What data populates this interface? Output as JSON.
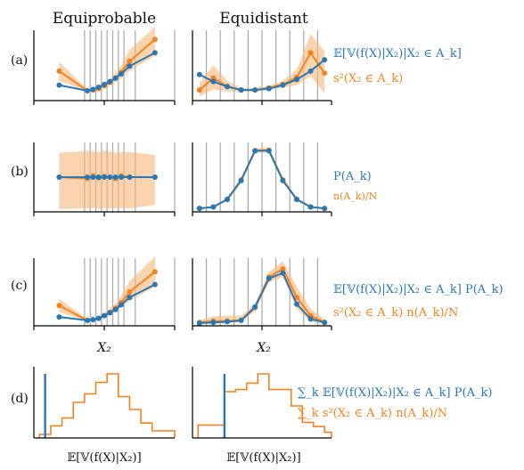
{
  "colors": {
    "blue": "#2878b5",
    "orange": "#f5821f",
    "band": "#f5b87a",
    "grid": "#a8a8a8",
    "axis": "#000000"
  },
  "columns": [
    "Equiprobable",
    "Equidistant"
  ],
  "rows": [
    "(a)",
    "(b)",
    "(c)",
    "(d)"
  ],
  "xlabels": {
    "x2": "X₂",
    "expectation": "𝔼[𝕍(f(X)|X₂)]"
  },
  "legends": {
    "a": {
      "blue": "𝔼[𝕍(f(X)|X₂)|X₂ ∈ A_k]",
      "orange": "s²(X₂ ∈ A_k)"
    },
    "b": {
      "blue": "P(A_k)",
      "orange": "n(A_k)/N"
    },
    "c": {
      "blue": "𝔼[𝕍(f(X)|X₂)|X₂ ∈ A_k] P(A_k)",
      "orange": "s²(X₂ ∈ A_k) n(A_k)/N"
    },
    "d": {
      "blue": "∑_k 𝔼[𝕍(f(X)|X₂)|X₂ ∈ A_k] P(A_k)",
      "orange": "∑_k s²(X₂ ∈ A_k) n(A_k)/N"
    }
  },
  "chart_data": [
    {
      "panel": "a-equiprobable",
      "type": "line",
      "xlim": [
        0,
        1
      ],
      "ylim": [
        0,
        1
      ],
      "vlines": [
        0.36,
        0.4,
        0.44,
        0.48,
        0.52,
        0.56,
        0.6,
        0.64,
        0.72,
        1.0
      ],
      "x": [
        0.18,
        0.38,
        0.42,
        0.46,
        0.5,
        0.54,
        0.58,
        0.62,
        0.68,
        0.86
      ],
      "series": [
        {
          "name": "blue",
          "values": [
            0.22,
            0.14,
            0.16,
            0.19,
            0.23,
            0.27,
            0.32,
            0.38,
            0.49,
            0.68
          ]
        },
        {
          "name": "orange",
          "values": [
            0.42,
            0.14,
            0.15,
            0.17,
            0.21,
            0.26,
            0.32,
            0.4,
            0.56,
            0.87
          ],
          "band_lo": [
            0.28,
            0.13,
            0.13,
            0.15,
            0.18,
            0.22,
            0.26,
            0.32,
            0.42,
            0.64
          ],
          "band_hi": [
            0.55,
            0.16,
            0.17,
            0.2,
            0.26,
            0.31,
            0.39,
            0.5,
            0.72,
            1.08
          ]
        }
      ]
    },
    {
      "panel": "a-equidistant",
      "type": "line",
      "xlim": [
        0,
        1
      ],
      "ylim": [
        0,
        1
      ],
      "vlines": [
        0.1,
        0.2,
        0.3,
        0.4,
        0.5,
        0.6,
        0.7,
        0.8,
        0.9
      ],
      "x": [
        0.05,
        0.15,
        0.25,
        0.35,
        0.45,
        0.55,
        0.65,
        0.75,
        0.85,
        0.95
      ],
      "series": [
        {
          "name": "blue",
          "values": [
            0.37,
            0.27,
            0.2,
            0.15,
            0.15,
            0.17,
            0.22,
            0.3,
            0.42,
            0.58
          ]
        },
        {
          "name": "orange",
          "values": [
            0.15,
            0.32,
            0.2,
            0.15,
            0.15,
            0.18,
            0.23,
            0.33,
            0.68,
            0.39
          ],
          "band_lo": [
            0.06,
            0.16,
            0.13,
            0.13,
            0.13,
            0.15,
            0.18,
            0.22,
            0.35,
            0.1
          ],
          "band_hi": [
            0.25,
            0.5,
            0.28,
            0.18,
            0.18,
            0.21,
            0.28,
            0.44,
            0.95,
            0.7
          ]
        }
      ]
    },
    {
      "panel": "b-equiprobable",
      "type": "line",
      "xlim": [
        0,
        1
      ],
      "ylim": [
        0,
        1
      ],
      "vlines": [
        0.36,
        0.4,
        0.44,
        0.48,
        0.52,
        0.56,
        0.6,
        0.64,
        0.72,
        1.0
      ],
      "x": [
        0.18,
        0.38,
        0.42,
        0.46,
        0.5,
        0.54,
        0.58,
        0.62,
        0.68,
        0.86
      ],
      "series": [
        {
          "name": "blue",
          "values": [
            0.5,
            0.5,
            0.5,
            0.5,
            0.5,
            0.5,
            0.5,
            0.5,
            0.5,
            0.5
          ]
        },
        {
          "name": "orange",
          "values": [
            0.5,
            0.48,
            0.52,
            0.49,
            0.51,
            0.5,
            0.48,
            0.52,
            0.5,
            0.5
          ],
          "band_lo": [
            0.04,
            0.05,
            0.06,
            0.04,
            0.05,
            0.05,
            0.05,
            0.06,
            0.05,
            0.1
          ],
          "band_hi": [
            0.85,
            0.88,
            0.87,
            0.86,
            0.88,
            0.87,
            0.85,
            0.86,
            0.86,
            0.82
          ]
        }
      ]
    },
    {
      "panel": "b-equidistant",
      "type": "line",
      "xlim": [
        0,
        1
      ],
      "ylim": [
        0,
        1
      ],
      "vlines": [
        0.1,
        0.2,
        0.3,
        0.4,
        0.5,
        0.6,
        0.7,
        0.8,
        0.9
      ],
      "x": [
        0.05,
        0.15,
        0.25,
        0.35,
        0.45,
        0.55,
        0.65,
        0.75,
        0.85,
        0.95
      ],
      "series": [
        {
          "name": "blue",
          "values": [
            0.05,
            0.07,
            0.18,
            0.45,
            0.88,
            0.88,
            0.45,
            0.18,
            0.07,
            0.05
          ]
        },
        {
          "name": "orange",
          "values": [
            0.05,
            0.07,
            0.18,
            0.46,
            0.88,
            0.89,
            0.46,
            0.18,
            0.07,
            0.05
          ],
          "band_lo": [
            0.04,
            0.06,
            0.16,
            0.42,
            0.85,
            0.85,
            0.42,
            0.16,
            0.06,
            0.04
          ],
          "band_hi": [
            0.06,
            0.08,
            0.2,
            0.5,
            0.92,
            0.92,
            0.5,
            0.2,
            0.08,
            0.06
          ]
        }
      ]
    },
    {
      "panel": "c-equiprobable",
      "type": "line",
      "xlim": [
        0,
        1
      ],
      "ylim": [
        0,
        1
      ],
      "vlines": [
        0.36,
        0.4,
        0.44,
        0.48,
        0.52,
        0.56,
        0.6,
        0.64,
        0.72,
        1.0
      ],
      "x": [
        0.18,
        0.38,
        0.42,
        0.46,
        0.5,
        0.54,
        0.58,
        0.62,
        0.68,
        0.86
      ],
      "series": [
        {
          "name": "blue",
          "values": [
            0.13,
            0.08,
            0.09,
            0.11,
            0.15,
            0.19,
            0.24,
            0.31,
            0.42,
            0.61
          ]
        },
        {
          "name": "orange",
          "values": [
            0.3,
            0.08,
            0.09,
            0.11,
            0.15,
            0.2,
            0.26,
            0.34,
            0.5,
            0.8
          ],
          "band_lo": [
            0.2,
            0.07,
            0.08,
            0.1,
            0.13,
            0.17,
            0.21,
            0.27,
            0.37,
            0.58
          ],
          "band_hi": [
            0.4,
            0.1,
            0.11,
            0.14,
            0.19,
            0.25,
            0.33,
            0.44,
            0.66,
            1.02
          ]
        }
      ]
    },
    {
      "panel": "c-equidistant",
      "type": "line",
      "xlim": [
        0,
        1
      ],
      "ylim": [
        0,
        1
      ],
      "vlines": [
        0.1,
        0.2,
        0.3,
        0.4,
        0.5,
        0.6,
        0.7,
        0.8,
        0.9
      ],
      "x": [
        0.05,
        0.15,
        0.25,
        0.35,
        0.45,
        0.55,
        0.65,
        0.75,
        0.85,
        0.95
      ],
      "series": [
        {
          "name": "blue",
          "values": [
            0.04,
            0.05,
            0.06,
            0.08,
            0.28,
            0.7,
            0.78,
            0.32,
            0.1,
            0.05
          ]
        },
        {
          "name": "orange",
          "values": [
            0.05,
            0.07,
            0.07,
            0.08,
            0.27,
            0.72,
            0.84,
            0.42,
            0.15,
            0.05
          ],
          "band_lo": [
            0.03,
            0.03,
            0.04,
            0.05,
            0.22,
            0.64,
            0.72,
            0.25,
            0.06,
            0.02
          ],
          "band_hi": [
            0.08,
            0.14,
            0.15,
            0.15,
            0.33,
            0.8,
            0.95,
            0.58,
            0.25,
            0.1
          ]
        }
      ]
    },
    {
      "panel": "d-equiprobable",
      "type": "histogram",
      "xlim": [
        0,
        1
      ],
      "ylim": [
        0,
        1
      ],
      "vline": 0.08,
      "bin_edges": [
        0.04,
        0.12,
        0.2,
        0.28,
        0.36,
        0.44,
        0.52,
        0.6,
        0.68,
        0.76,
        0.84,
        0.92,
        1.0
      ],
      "counts": [
        0.05,
        0.17,
        0.28,
        0.5,
        0.62,
        0.78,
        0.9,
        0.58,
        0.4,
        0.21,
        0.1,
        0.1
      ]
    },
    {
      "panel": "d-equidistant",
      "type": "histogram",
      "xlim": [
        0,
        1
      ],
      "ylim": [
        0,
        1
      ],
      "vline": 0.23,
      "bin_edges": [
        0.04,
        0.23,
        0.31,
        0.39,
        0.47,
        0.55,
        0.63,
        0.71,
        0.79,
        0.87,
        0.95,
        1.0
      ],
      "counts": [
        0.18,
        0.65,
        0.68,
        0.77,
        0.9,
        0.68,
        0.68,
        0.45,
        0.22,
        0.16,
        0.08
      ]
    }
  ]
}
